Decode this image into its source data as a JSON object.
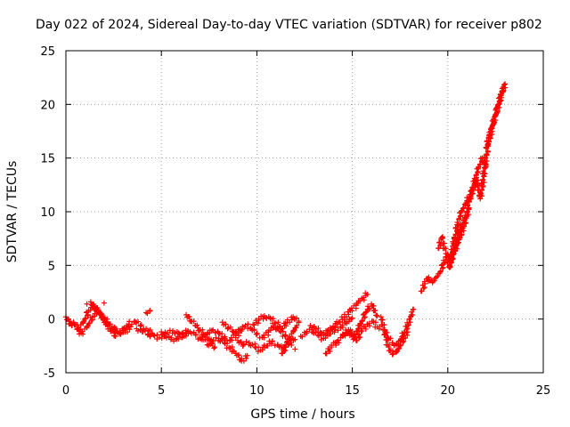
{
  "chart_data": {
    "type": "scatter",
    "title": "Day 022 of 2024, Sidereal Day-to-day VTEC variation (SDTVAR) for receiver p802",
    "xlabel": "GPS time / hours",
    "ylabel": "SDTVAR / TECUs",
    "xlim": [
      0,
      25
    ],
    "ylim": [
      -5,
      25
    ],
    "xticks": [
      0,
      5,
      10,
      15,
      20,
      25
    ],
    "yticks": [
      -5,
      0,
      5,
      10,
      15,
      20,
      25
    ],
    "grid": true,
    "marker": "+",
    "color": "#ff0000",
    "series": [
      {
        "name": "SDTVAR",
        "segments": [
          {
            "x": [
              0.0,
              0.3,
              0.6,
              0.9,
              1.2,
              1.5,
              1.8,
              2.1,
              2.4,
              2.7,
              3.0,
              3.3,
              3.6,
              3.9,
              4.2,
              4.5
            ],
            "y": [
              0.2,
              -0.6,
              -0.9,
              -0.4,
              0.8,
              1.2,
              0.5,
              -0.3,
              -0.8,
              -1.2,
              -0.9,
              -0.5,
              -0.2,
              -0.6,
              -0.9,
              -1.3
            ]
          },
          {
            "x": [
              0.2,
              0.5,
              0.8,
              1.1,
              1.4,
              1.7,
              2.0,
              2.3,
              2.6
            ],
            "y": [
              -0.2,
              -0.5,
              -1.3,
              -0.8,
              0.2,
              0.7,
              -0.1,
              -0.9,
              -1.6
            ]
          },
          {
            "x": [
              1.3,
              1.6,
              1.9,
              2.2,
              2.5,
              2.8,
              3.1,
              3.4
            ],
            "y": [
              1.6,
              0.9,
              0.2,
              -0.4,
              -1.0,
              -1.4,
              -1.2,
              -0.7
            ]
          },
          {
            "x": [
              3.7,
              4.0,
              4.3,
              4.6,
              4.9,
              5.2,
              5.5,
              5.8,
              6.1,
              6.4
            ],
            "y": [
              -0.9,
              -1.2,
              -1.4,
              -1.5,
              -1.7,
              -1.6,
              -1.9,
              -1.8,
              -1.4,
              -1.1
            ]
          },
          {
            "x": [
              4.2,
              4.4
            ],
            "y": [
              0.6,
              0.8
            ]
          },
          {
            "x": [
              5.0,
              5.3,
              5.6,
              5.9,
              6.2,
              6.5,
              6.8,
              7.1,
              7.4,
              7.7,
              8.0,
              8.3,
              8.6,
              8.9,
              9.2
            ],
            "y": [
              -1.2,
              -1.4,
              -1.1,
              -1.3,
              -1.6,
              -1.2,
              -1.5,
              -1.9,
              -1.4,
              -1.0,
              -1.3,
              -1.8,
              -2.0,
              -1.5,
              -1.1
            ]
          },
          {
            "x": [
              6.3,
              6.6,
              6.9,
              7.2,
              7.5,
              7.8
            ],
            "y": [
              0.4,
              -0.2,
              -0.8,
              -1.4,
              -2.0,
              -2.6
            ]
          },
          {
            "x": [
              7.4,
              7.7,
              8.0,
              8.3,
              8.6,
              8.9,
              9.2,
              9.5
            ],
            "y": [
              -2.4,
              -2.1,
              -1.8,
              -2.2,
              -2.7,
              -3.2,
              -3.9,
              -3.4
            ]
          },
          {
            "x": [
              8.2,
              8.5,
              8.8,
              9.1,
              9.4,
              9.7,
              10.0,
              10.3,
              10.6,
              10.9,
              11.2,
              11.5,
              11.8
            ],
            "y": [
              -0.3,
              -0.8,
              -1.2,
              -1.0,
              -0.6,
              -0.9,
              -1.4,
              -1.7,
              -1.2,
              -0.7,
              -1.1,
              -1.6,
              -2.0
            ]
          },
          {
            "x": [
              9.0,
              9.3,
              9.6,
              9.9,
              10.2,
              10.5,
              10.8,
              11.1,
              11.4,
              11.7,
              12.0
            ],
            "y": [
              -2.0,
              -2.4,
              -2.2,
              -2.6,
              -2.9,
              -2.5,
              -2.1,
              -2.4,
              -2.8,
              -2.3,
              -1.9
            ]
          },
          {
            "x": [
              9.8,
              10.1,
              10.4,
              10.7,
              11.0,
              11.3,
              11.6,
              11.9,
              12.2
            ],
            "y": [
              -0.5,
              -0.1,
              0.3,
              0.1,
              -0.4,
              -0.9,
              -0.3,
              0.2,
              -0.2
            ]
          },
          {
            "x": [
              11.3,
              11.5,
              11.7,
              11.9,
              12.1
            ],
            "y": [
              -3.2,
              -2.6,
              -1.8,
              -1.2,
              -0.6
            ]
          },
          {
            "x": [
              12.3,
              12.6,
              12.9,
              13.2,
              13.5,
              13.8,
              14.1,
              14.4,
              14.7,
              15.0
            ],
            "y": [
              -1.6,
              -1.3,
              -1.0,
              -1.5,
              -1.8,
              -1.4,
              -1.0,
              -0.7,
              -0.4,
              0.1
            ]
          },
          {
            "x": [
              12.8,
              13.1,
              13.4,
              13.7,
              14.0,
              14.3,
              14.6,
              14.9,
              15.2,
              15.5,
              15.8
            ],
            "y": [
              -0.6,
              -0.9,
              -1.3,
              -1.1,
              -0.7,
              -0.3,
              0.2,
              0.8,
              1.3,
              1.9,
              2.3
            ]
          },
          {
            "x": [
              13.6,
              13.9,
              14.2,
              14.5,
              14.8,
              15.1
            ],
            "y": [
              -3.2,
              -2.6,
              -2.1,
              -1.6,
              -1.2,
              -1.8
            ]
          },
          {
            "x": [
              14.5,
              14.8,
              15.1,
              15.4,
              15.7,
              16.0,
              16.3
            ],
            "y": [
              -1.4,
              -1.0,
              -1.6,
              -0.6,
              0.6,
              1.4,
              0.3
            ]
          },
          {
            "x": [
              15.2,
              15.5,
              15.8,
              16.1,
              16.4
            ],
            "y": [
              -2.0,
              -1.1,
              -0.5,
              -0.2,
              -0.9
            ]
          },
          {
            "x": [
              16.5,
              16.7,
              16.9,
              17.1,
              17.3,
              17.5,
              17.7,
              17.9
            ],
            "y": [
              0.2,
              -1.4,
              -2.6,
              -3.3,
              -3.1,
              -2.5,
              -1.8,
              -1.2
            ]
          },
          {
            "x": [
              16.7,
              16.9,
              17.1,
              17.3,
              17.5,
              17.7,
              17.9,
              18.1,
              18.2
            ],
            "y": [
              -1.0,
              -1.8,
              -2.2,
              -2.4,
              -2.0,
              -1.3,
              -0.6,
              0.4,
              0.9
            ]
          },
          {
            "x": [
              18.6,
              18.8,
              19.0,
              19.2,
              19.4,
              19.6,
              19.8,
              20.0,
              20.2,
              20.4,
              20.6,
              20.8,
              21.0
            ],
            "y": [
              2.6,
              3.3,
              3.9,
              3.4,
              3.9,
              4.4,
              5.2,
              6.0,
              5.5,
              6.6,
              7.4,
              8.5,
              9.6
            ]
          },
          {
            "x": [
              19.5,
              19.7,
              19.9,
              20.1,
              20.3,
              20.5,
              20.7,
              20.9,
              21.1
            ],
            "y": [
              6.6,
              7.6,
              6.1,
              4.8,
              6.2,
              7.4,
              8.6,
              9.4,
              10.2
            ]
          },
          {
            "x": [
              20.1,
              20.3,
              20.5,
              20.7,
              20.9,
              21.1,
              21.3,
              21.5
            ],
            "y": [
              5.0,
              7.0,
              8.8,
              9.9,
              10.7,
              11.3,
              12.0,
              12.9
            ]
          },
          {
            "x": [
              21.0,
              21.2,
              21.4,
              21.6,
              21.8,
              22.0
            ],
            "y": [
              10.0,
              11.4,
              12.9,
              14.0,
              15.0,
              14.2
            ]
          },
          {
            "x": [
              21.5,
              21.7,
              21.9,
              22.1,
              22.3,
              22.5,
              22.7,
              22.9
            ],
            "y": [
              13.2,
              11.2,
              13.6,
              16.1,
              17.8,
              19.0,
              20.3,
              21.6
            ]
          },
          {
            "x": [
              22.0,
              22.2,
              22.4,
              22.6,
              22.8,
              23.0
            ],
            "y": [
              16.0,
              17.2,
              18.4,
              19.6,
              20.8,
              21.9
            ]
          }
        ],
        "isolated": [
          {
            "x": 2.0,
            "y": 1.5
          },
          {
            "x": 1.1,
            "y": 1.4
          },
          {
            "x": 12.0,
            "y": -2.8
          }
        ]
      }
    ]
  }
}
